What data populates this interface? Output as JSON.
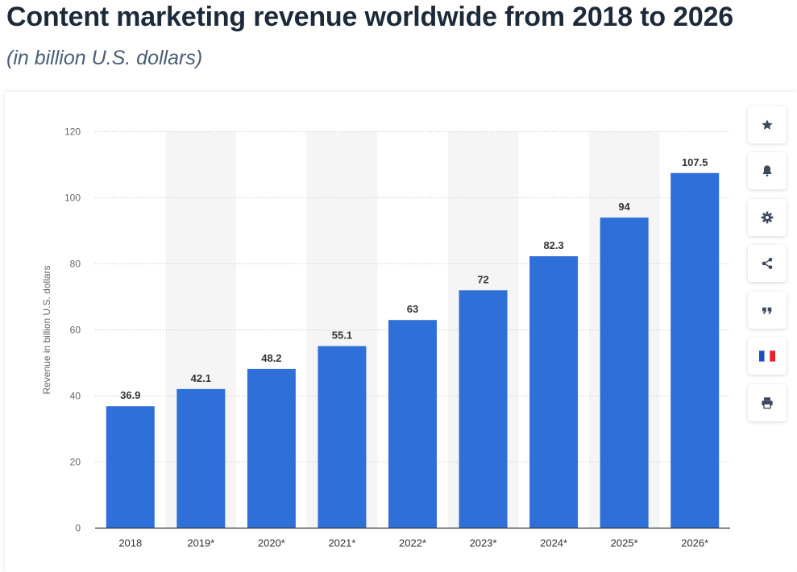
{
  "header": {
    "title": "Content marketing revenue worldwide from 2018 to 2026",
    "subtitle": "(in billion U.S. dollars)"
  },
  "toolbar": {
    "buttons": [
      {
        "name": "favorite-button",
        "icon": "star-icon"
      },
      {
        "name": "notification-button",
        "icon": "bell-icon"
      },
      {
        "name": "settings-button",
        "icon": "gear-icon"
      },
      {
        "name": "share-button",
        "icon": "share-icon"
      },
      {
        "name": "cite-button",
        "icon": "quote-icon"
      },
      {
        "name": "language-button",
        "icon": "french-flag-icon"
      },
      {
        "name": "print-button",
        "icon": "printer-icon"
      }
    ]
  },
  "chart_data": {
    "type": "bar",
    "categories": [
      "2018",
      "2019*",
      "2020*",
      "2021*",
      "2022*",
      "2023*",
      "2024*",
      "2025*",
      "2026*"
    ],
    "values": [
      36.9,
      42.1,
      48.2,
      55.1,
      63,
      72,
      82.3,
      94,
      107.5
    ],
    "value_labels": [
      "36.9",
      "42.1",
      "48.2",
      "55.1",
      "63",
      "72",
      "82.3",
      "94",
      "107.5"
    ],
    "ylabel": "Revenue in billion U.S. dollars",
    "xlabel": "",
    "ylim": [
      0,
      120
    ],
    "yticks": [
      0,
      20,
      40,
      60,
      80,
      100,
      120
    ],
    "grid": true,
    "alternating_column_shading": true,
    "colors": {
      "bar": "#2f6fd8",
      "grid": "#cfcfcf",
      "shade": "#f5f5f5",
      "axis": "#333333",
      "tick_text": "#666666",
      "label_text": "#333333"
    }
  }
}
